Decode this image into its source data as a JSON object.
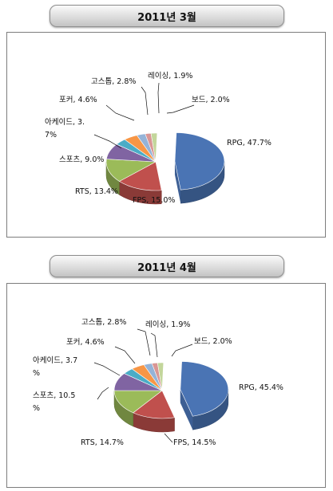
{
  "chart_data": [
    {
      "type": "pie",
      "title": "2011년 3월",
      "slices": [
        {
          "name": "RPG",
          "value": 47.7,
          "label": "RPG, 47.7%",
          "color": "#4a74b4"
        },
        {
          "name": "FPS",
          "value": 15.0,
          "label": "FPS, 15.0%",
          "color": "#c0504d"
        },
        {
          "name": "RTS",
          "value": 13.4,
          "label": "RTS, 13.4%",
          "color": "#9bbb59"
        },
        {
          "name": "스포츠",
          "value": 9.0,
          "label": "스포츠, 9.0%",
          "color": "#8064a2"
        },
        {
          "name": "아케이드",
          "value": 3.7,
          "label_lines": [
            "아케이드, 3.",
            "7%"
          ],
          "color": "#4bacc6"
        },
        {
          "name": "포커",
          "value": 4.6,
          "label": "포커, 4.6%",
          "color": "#f79646"
        },
        {
          "name": "고스톱",
          "value": 2.8,
          "label": "고스톱, 2.8%",
          "color": "#95b3d7"
        },
        {
          "name": "레이싱",
          "value": 1.9,
          "label": "레이싱, 1.9%",
          "color": "#d99694"
        },
        {
          "name": "보드",
          "value": 2.0,
          "label": "보드, 2.0%",
          "color": "#c3d69b"
        }
      ]
    },
    {
      "type": "pie",
      "title": "2011년 4월",
      "slices": [
        {
          "name": "RPG",
          "value": 45.4,
          "label": "RPG, 45.4%",
          "color": "#4a74b4"
        },
        {
          "name": "FPS",
          "value": 14.5,
          "label": "FPS, 14.5%",
          "color": "#c0504d"
        },
        {
          "name": "RTS",
          "value": 14.7,
          "label": "RTS, 14.7%",
          "color": "#9bbb59"
        },
        {
          "name": "스포츠",
          "value": 10.5,
          "label_lines": [
            "스포츠, 10.5",
            "%"
          ],
          "color": "#8064a2"
        },
        {
          "name": "아케이드",
          "value": 3.7,
          "label_lines": [
            "아케이드, 3.7",
            "%"
          ],
          "color": "#4bacc6"
        },
        {
          "name": "포커",
          "value": 4.6,
          "label": "포커, 4.6%",
          "color": "#f79646"
        },
        {
          "name": "고스톱",
          "value": 2.8,
          "label": "고스톱, 2.8%",
          "color": "#95b3d7"
        },
        {
          "name": "레이싱",
          "value": 1.9,
          "label": "레이싱, 1.9%",
          "color": "#d99694"
        },
        {
          "name": "보드",
          "value": 2.0,
          "label": "보드, 2.0%",
          "color": "#c3d69b"
        }
      ]
    }
  ]
}
